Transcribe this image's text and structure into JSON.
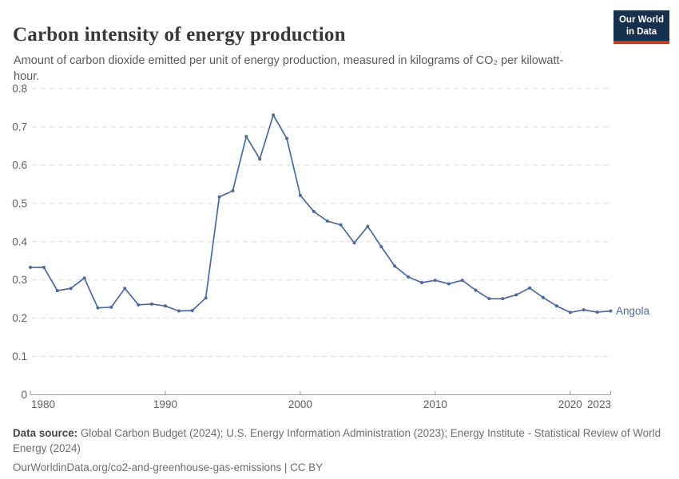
{
  "header": {
    "title": "Carbon intensity of energy production",
    "subtitle": "Amount of carbon dioxide emitted per unit of energy production, measured in kilograms of CO₂ per kilowatt-hour."
  },
  "logo": {
    "line1": "Our World",
    "line2": "in Data"
  },
  "chart_data": {
    "type": "line",
    "title": "Carbon intensity of energy production",
    "unit": "kilograms of CO₂ per kilowatt-hour",
    "entity_label": "Angola",
    "x": [
      1980,
      1981,
      1982,
      1983,
      1984,
      1985,
      1986,
      1987,
      1988,
      1989,
      1990,
      1991,
      1992,
      1993,
      1994,
      1995,
      1996,
      1997,
      1998,
      1999,
      2000,
      2001,
      2002,
      2003,
      2004,
      2005,
      2006,
      2007,
      2008,
      2009,
      2010,
      2011,
      2012,
      2013,
      2014,
      2015,
      2016,
      2017,
      2018,
      2019,
      2020,
      2021,
      2022,
      2023
    ],
    "series": [
      {
        "name": "Angola",
        "color": "#4c6a9c",
        "values": [
          0.333,
          0.333,
          0.272,
          0.278,
          0.305,
          0.227,
          0.229,
          0.278,
          0.235,
          0.237,
          0.232,
          0.219,
          0.22,
          0.253,
          0.517,
          0.533,
          0.675,
          0.616,
          0.731,
          0.67,
          0.521,
          0.479,
          0.454,
          0.444,
          0.397,
          0.44,
          0.387,
          0.336,
          0.308,
          0.293,
          0.299,
          0.29,
          0.299,
          0.273,
          0.251,
          0.251,
          0.261,
          0.279,
          0.254,
          0.232,
          0.215,
          0.222,
          0.216,
          0.219
        ]
      }
    ],
    "ylim": [
      0,
      0.8
    ],
    "yticks": [
      0,
      0.1,
      0.2,
      0.3,
      0.4,
      0.5,
      0.6,
      0.7,
      0.8
    ],
    "xticks": [
      1980,
      1990,
      2000,
      2010,
      2020,
      2023
    ],
    "grid": "horizontal-dashed",
    "legend": "end-of-line-label",
    "colors": {
      "line": "#4c6a9c",
      "gridline": "#dcdcdc",
      "axis": "#9c9c9c",
      "tick_text": "#5f5f5f"
    }
  },
  "footer": {
    "source_label": "Data source:",
    "source_text": " Global Carbon Budget (2024); U.S. Energy Information Administration (2023); Energy Institute - Statistical Review of World Energy (2024)",
    "url": "OurWorldinData.org/co2-and-greenhouse-gas-emissions",
    "divider": " | ",
    "license": "CC BY"
  }
}
